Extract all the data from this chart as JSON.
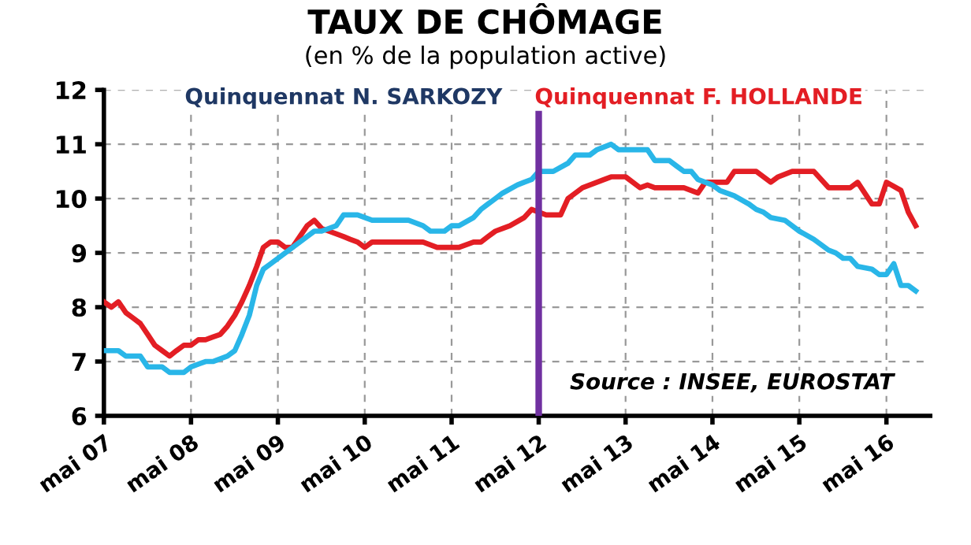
{
  "chart_data": {
    "type": "line",
    "title": "TAUX DE CHÔMAGE",
    "subtitle": "(en % de la population active)",
    "annotations": [
      "Quinquennat N. SARKOZY",
      "Quinquennat F. HOLLANDE",
      "Source : INSEE, EUROSTAT"
    ],
    "series": [
      {
        "color": "#e31e24",
        "x": [
          "2007-05",
          "2007-06",
          "2007-07",
          "2007-08",
          "2007-09",
          "2007-10",
          "2007-11",
          "2007-12",
          "2008-01",
          "2008-02",
          "2008-03",
          "2008-04",
          "2008-05",
          "2008-06",
          "2008-07",
          "2008-08",
          "2008-09",
          "2008-10",
          "2008-11",
          "2008-12",
          "2009-01",
          "2009-02",
          "2009-03",
          "2009-04",
          "2009-05",
          "2009-06",
          "2009-07",
          "2009-08",
          "2009-09",
          "2009-10",
          "2009-11",
          "2009-12",
          "2010-01",
          "2010-02",
          "2010-03",
          "2010-04",
          "2010-05",
          "2010-06",
          "2010-07",
          "2011-01",
          "2011-03",
          "2011-06",
          "2011-08",
          "2011-09",
          "2011-10",
          "2011-11",
          "2011-12",
          "2012-01",
          "2012-03",
          "2012-04",
          "2012-06",
          "2012-08",
          "2012-09",
          "2012-11",
          "2013-01",
          "2013-03",
          "2013-05",
          "2013-07",
          "2013-08",
          "2013-09",
          "2014-01",
          "2014-03",
          "2014-04",
          "2014-07",
          "2014-08",
          "2014-11",
          "2015-01",
          "2015-02",
          "2015-04",
          "2015-07",
          "2015-09",
          "2015-12",
          "2016-01",
          "2016-03",
          "2016-04",
          "2016-05",
          "2016-07",
          "2016-08",
          "2016-09"
        ],
        "values": [
          8.1,
          8.0,
          8.1,
          7.9,
          7.8,
          7.7,
          7.5,
          7.3,
          7.2,
          7.1,
          7.2,
          7.3,
          7.3,
          7.4,
          7.4,
          7.45,
          7.5,
          7.65,
          7.85,
          8.1,
          8.4,
          8.75,
          9.1,
          9.2,
          9.2,
          9.1,
          9.1,
          9.3,
          9.5,
          9.6,
          9.45,
          9.4,
          9.35,
          9.3,
          9.25,
          9.2,
          9.1,
          9.2,
          9.2,
          9.2,
          9.1,
          9.1,
          9.2,
          9.2,
          9.3,
          9.4,
          9.45,
          9.5,
          9.65,
          9.8,
          9.7,
          9.7,
          10.0,
          10.2,
          10.3,
          10.4,
          10.4,
          10.2,
          10.25,
          10.2,
          10.2,
          10.1,
          10.3,
          10.3,
          10.5,
          10.5,
          10.3,
          10.4,
          10.5,
          10.5,
          10.2,
          10.2,
          10.3,
          9.9,
          9.9,
          10.3,
          10.15,
          9.75,
          9.5
        ]
      },
      {
        "color": "#29b6e8",
        "x": [
          "2007-05",
          "2007-07",
          "2007-08",
          "2007-10",
          "2007-11",
          "2008-01",
          "2008-02",
          "2008-04",
          "2008-05",
          "2008-07",
          "2008-08",
          "2008-10",
          "2008-11",
          "2008-12",
          "2009-01",
          "2009-02",
          "2009-03",
          "2009-04",
          "2009-06",
          "2009-08",
          "2009-10",
          "2009-11",
          "2010-01",
          "2010-02",
          "2010-04",
          "2010-06",
          "2010-11",
          "2011-01",
          "2011-02",
          "2011-04",
          "2011-05",
          "2011-06",
          "2011-08",
          "2011-09",
          "2011-10",
          "2011-11",
          "2011-12",
          "2012-02",
          "2012-03",
          "2012-04",
          "2012-05",
          "2012-07",
          "2012-09",
          "2012-10",
          "2012-12",
          "2013-01",
          "2013-03",
          "2013-04",
          "2013-08",
          "2013-09",
          "2013-11",
          "2013-12",
          "2014-01",
          "2014-02",
          "2014-03",
          "2014-05",
          "2014-06",
          "2014-08",
          "2014-10",
          "2014-11",
          "2014-12",
          "2015-01",
          "2015-03",
          "2015-05",
          "2015-07",
          "2015-09",
          "2015-10",
          "2015-11",
          "2015-12",
          "2016-01",
          "2016-03",
          "2016-04",
          "2016-05",
          "2016-06",
          "2016-07",
          "2016-08",
          "2016-09"
        ],
        "values": [
          7.2,
          7.2,
          7.1,
          7.1,
          6.9,
          6.9,
          6.8,
          6.8,
          6.9,
          7.0,
          7.0,
          7.1,
          7.2,
          7.5,
          7.85,
          8.4,
          8.7,
          8.8,
          9.0,
          9.2,
          9.4,
          9.4,
          9.5,
          9.7,
          9.7,
          9.6,
          9.6,
          9.5,
          9.4,
          9.4,
          9.5,
          9.5,
          9.65,
          9.8,
          9.9,
          10.0,
          10.1,
          10.25,
          10.3,
          10.35,
          10.5,
          10.5,
          10.65,
          10.8,
          10.8,
          10.9,
          11.0,
          10.9,
          10.9,
          10.7,
          10.7,
          10.6,
          10.5,
          10.5,
          10.35,
          10.25,
          10.15,
          10.05,
          9.9,
          9.8,
          9.75,
          9.65,
          9.6,
          9.4,
          9.25,
          9.05,
          9.0,
          8.9,
          8.9,
          8.75,
          8.7,
          8.6,
          8.6,
          8.8,
          8.4,
          8.4,
          8.3
        ]
      }
    ],
    "xlim": [
      "2007-05",
      "2016-11"
    ],
    "xticks": [
      {
        "value": "2007-05",
        "label": "mai 07"
      },
      {
        "value": "2008-05",
        "label": "mai 08"
      },
      {
        "value": "2009-05",
        "label": "mai 09"
      },
      {
        "value": "2010-05",
        "label": "mai 10"
      },
      {
        "value": "2011-05",
        "label": "mai 11"
      },
      {
        "value": "2012-05",
        "label": "mai 12"
      },
      {
        "value": "2013-05",
        "label": "mai 13"
      },
      {
        "value": "2014-05",
        "label": "mai 14"
      },
      {
        "value": "2015-05",
        "label": "mai 15"
      },
      {
        "value": "2016-05",
        "label": "mai 16"
      }
    ],
    "ylim": [
      6,
      12
    ],
    "yticks": [
      6,
      7,
      8,
      9,
      10,
      11,
      12
    ],
    "ref_lines": [
      {
        "axis": "x",
        "value": "2012-05",
        "color": "#7030a0"
      }
    ],
    "grid": true,
    "legend": false,
    "marker": "none",
    "line_style": "solid"
  }
}
